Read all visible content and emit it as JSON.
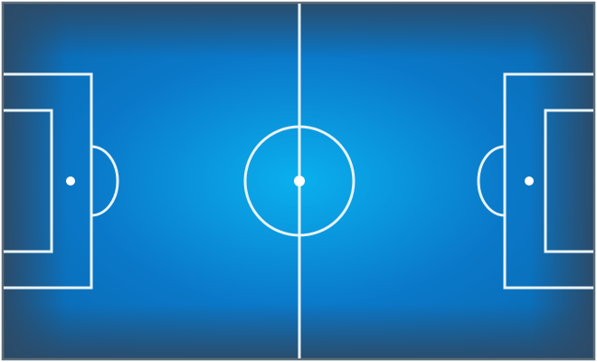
{
  "pitch": {
    "surface_color": "#0ab0ee",
    "mid_color": "#0a78c8",
    "edge_color": "#2d4a66",
    "line_color": "#e9f3f8",
    "border_color": "#5e6f7a"
  }
}
